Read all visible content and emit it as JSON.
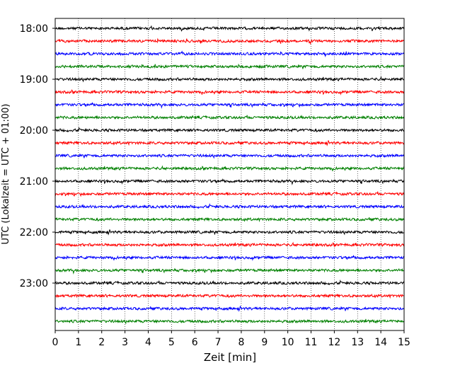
{
  "chart_data": {
    "type": "line",
    "title": "",
    "xlabel": "Zeit  [min]",
    "ylabel": "UTC (Lokalzeit = UTC + 01:00)",
    "xlim": [
      0,
      15
    ],
    "x_ticks": [
      "0",
      "1",
      "2",
      "3",
      "4",
      "5",
      "6",
      "7",
      "8",
      "9",
      "10",
      "11",
      "12",
      "13",
      "14",
      "15"
    ],
    "y_tick_labels": [
      "18:00",
      "19:00",
      "20:00",
      "21:00",
      "22:00",
      "23:00"
    ],
    "trace_interval_minutes": 15,
    "trace_count": 24,
    "colors": [
      "#000000",
      "#ff0000",
      "#0000ff",
      "#008000"
    ],
    "grid": "vertical-dotted",
    "legend": "none"
  }
}
